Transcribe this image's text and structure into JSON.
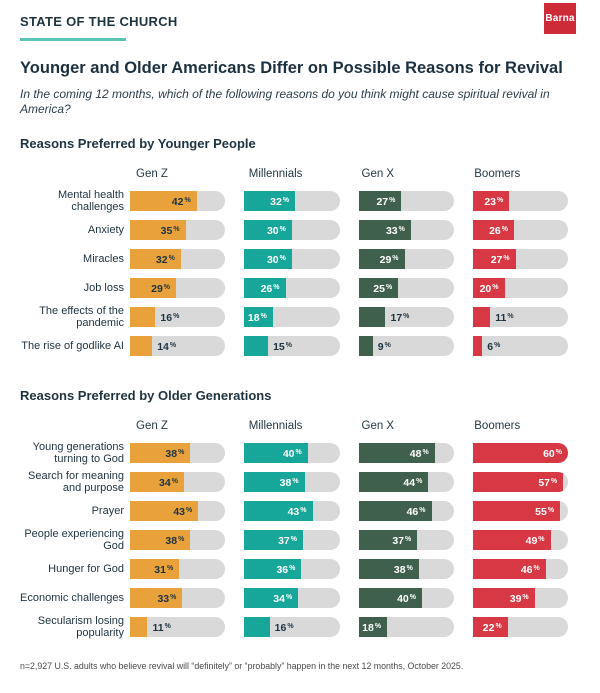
{
  "brand": {
    "kicker": "STATE OF THE CHURCH",
    "logo_text": "Barna"
  },
  "header": {
    "title": "Younger and Older Americans Differ on Possible Reasons for Revival",
    "subtitle": "In the coming 12 months, which of the following reasons do you think might cause spiritual revival in America?"
  },
  "footnote": "n=2,927 U.S. adults who believe revival will “definitely” or “probably” happen in the next 12 months, October 2025.",
  "colors": {
    "navy": "#1E3340",
    "track": "#D9D9D9",
    "accent_underline": "#5AC4B7",
    "logo_red": "#CE2B39",
    "series": [
      "#E9A23B",
      "#17A79A",
      "#40604E",
      "#D73843"
    ],
    "inside_label": [
      "#1E3340",
      "#FFFFFF",
      "#FFFFFF",
      "#FFFFFF"
    ]
  },
  "chart_data": [
    {
      "type": "bar",
      "title": "Reasons Preferred by Younger People",
      "orientation": "horizontal",
      "value_suffix": "%",
      "xlim": [
        0,
        60
      ],
      "label_inside_min": 18,
      "categories": [
        "Mental health challenges",
        "Anxiety",
        "Miracles",
        "Job loss",
        "The effects of the pandemic",
        "The rise of godlike AI"
      ],
      "series": [
        {
          "name": "Gen Z",
          "values": [
            42,
            35,
            32,
            29,
            16,
            14
          ]
        },
        {
          "name": "Millennials",
          "values": [
            32,
            30,
            30,
            26,
            18,
            15
          ]
        },
        {
          "name": "Gen X",
          "values": [
            27,
            33,
            29,
            25,
            17,
            9
          ]
        },
        {
          "name": "Boomers",
          "values": [
            23,
            26,
            27,
            20,
            11,
            6
          ]
        }
      ]
    },
    {
      "type": "bar",
      "title": "Reasons Preferred by Older Generations",
      "orientation": "horizontal",
      "value_suffix": "%",
      "xlim": [
        0,
        60
      ],
      "label_inside_min": 18,
      "categories": [
        "Young generations turning to God",
        "Search for meaning and purpose",
        "Prayer",
        "People experiencing God",
        "Hunger for God",
        "Economic challenges",
        "Secularism losing popularity"
      ],
      "series": [
        {
          "name": "Gen Z",
          "values": [
            38,
            34,
            43,
            38,
            31,
            33,
            11
          ]
        },
        {
          "name": "Millennials",
          "values": [
            40,
            38,
            43,
            37,
            36,
            34,
            16
          ]
        },
        {
          "name": "Gen X",
          "values": [
            48,
            44,
            46,
            37,
            38,
            40,
            18
          ]
        },
        {
          "name": "Boomers",
          "values": [
            60,
            57,
            55,
            49,
            46,
            39,
            22
          ]
        }
      ]
    }
  ]
}
